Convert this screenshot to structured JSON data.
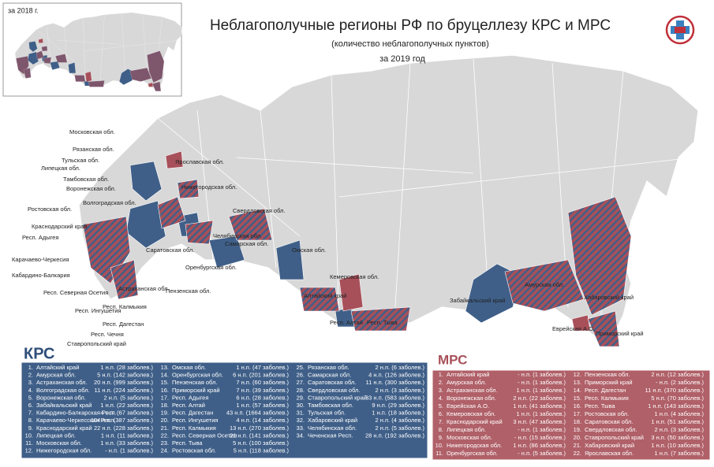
{
  "header": {
    "title": "Неблагополучные регионы РФ по бруцеллезу КРС и МРС",
    "subtitle": "(количество неблагополучных пунктов)",
    "period": "за 2019 год",
    "inset_label": "за 2018 г."
  },
  "map_labels": [
    "Московская обл.",
    "Рязанская обл.",
    "Тульская обл.",
    "Липецкая обл.",
    "Тамбовская обл.",
    "Воронежская обл.",
    "Волгоградская обл.",
    "Ростовская обл.",
    "Краснодарский край",
    "Респ. Адыгея",
    "Карачаево-Черкесия",
    "Кабардино-Балкария",
    "Респ. Северная Осетия",
    "Респ. Ингушетия",
    "Респ. Чечня",
    "Ставропольский край",
    "Респ. Дагестан",
    "Респ. Калмыкия",
    "Астраханская обл.",
    "Саратовская обл.",
    "Оренбургская обл.",
    "Пензенская обл.",
    "Нижегородская обл.",
    "Ярославская обл.",
    "Самарская обл.",
    "Свердловская обл.",
    "Челябинская обл.",
    "Омская обл.",
    "Кемеровская обл.",
    "Алтайский край",
    "Респ. Алтай",
    "Респ. Тыва",
    "Забайкальский край",
    "Амурская обл.",
    "Хабаровский край",
    "Еврейская А.О.",
    "Приморский край"
  ],
  "krs": {
    "heading": "КРС",
    "rows": [
      [
        "1.",
        "Алтайский край",
        "1 н.п. (28 заболев.)"
      ],
      [
        "2.",
        "Амурская обл.",
        "5 н.п. (142 заболев.)"
      ],
      [
        "3.",
        "Астраханская обл.",
        "20 н.п. (999 заболев.)"
      ],
      [
        "4.",
        "Волгоградская обл.",
        "11 н.п. (224 заболев.)"
      ],
      [
        "5.",
        "Воронежская обл.",
        "2 н.п. (5 заболев.)"
      ],
      [
        "6.",
        "Забайкальский край",
        "1 н.п. (22 заболев.)"
      ],
      [
        "7.",
        "Кабардино-Балкарская Респ.",
        "4 н.п. (67 заболев.)"
      ],
      [
        "8.",
        "Карачаево-Черкесская Респ.",
        "104 н.п. (387 заболев.)"
      ],
      [
        "9.",
        "Краснодарский край",
        "22 н.п. (228 заболев.)"
      ],
      [
        "10.",
        "Липецкая обл.",
        "1 н.п. (11 заболев.)"
      ],
      [
        "11.",
        "Московская обл.",
        "1 н.п. (33 заболев.)"
      ],
      [
        "12.",
        "Нижегородская обл.",
        "- н.п. (1 заболев.)"
      ],
      [
        "13.",
        "Омская обл.",
        "1 н.п. (47 заболев.)"
      ],
      [
        "14.",
        "Оренбургская обл.",
        "6 н.п. (201 заболев.)"
      ],
      [
        "15.",
        "Пензенская обл.",
        "7 н.п. (60 заболев.)"
      ],
      [
        "16.",
        "Приморский край",
        "7 н.п. (39 заболев.)"
      ],
      [
        "17.",
        "Респ. Адыгея",
        "6 н.п. (28 заболев.)"
      ],
      [
        "18.",
        "Респ. Алтай",
        "1 н.п. (57 заболев.)"
      ],
      [
        "19.",
        "Респ. Дагестан",
        "43 н.п. (1664 заболев.)"
      ],
      [
        "20.",
        "Респ. Ингушетия",
        "4 н.п. (14 заболев.)"
      ],
      [
        "21.",
        "Респ. Калмыкия",
        "13 н.п. (270 заболев.)"
      ],
      [
        "22.",
        "Респ. Северная Осетия",
        "21 н.п. (141 заболев.)"
      ],
      [
        "23.",
        "Респ. Тыва",
        "5 н.п. (100 заболев.)"
      ],
      [
        "24.",
        "Ростовская обл.",
        "5 н.п. (118 заболев.)"
      ],
      [
        "25.",
        "Рязанская обл.",
        "2 н.п. (6 заболев.)"
      ],
      [
        "26.",
        "Самарская обл.",
        "4 н.п. (126 заболев.)"
      ],
      [
        "27.",
        "Саратовская обл.",
        "11 н.п. (300 заболев.)"
      ],
      [
        "28.",
        "Свердловская обл.",
        "2 н.п. (3 заболев.)"
      ],
      [
        "29.",
        "Ставропольский край",
        "33 н.п. (583 заболев.)"
      ],
      [
        "30.",
        "Тамбовская обл.",
        "9 н.п. (29 заболев.)"
      ],
      [
        "31.",
        "Тульская обл.",
        "1 н.п. (18 заболев.)"
      ],
      [
        "32.",
        "Хабаровский край",
        "2 н.п. (4 заболев.)"
      ],
      [
        "33.",
        "Челябинская обл.",
        "2 н.п. (5 заболев.)"
      ],
      [
        "34.",
        "Чеченская Респ.",
        "28 н.п. (192 заболев.)"
      ]
    ]
  },
  "mrs": {
    "heading": "МРС",
    "rows": [
      [
        "1.",
        "Алтайский край",
        "- н.п. (1 заболев.)"
      ],
      [
        "2.",
        "Амурская обл.",
        "- н.п. (1 заболев.)"
      ],
      [
        "3.",
        "Астраханская обл.",
        "1 н.п. (1 заболев.)"
      ],
      [
        "4.",
        "Воронежская обл.",
        "2 н.п. (22 заболев.)"
      ],
      [
        "5.",
        "Еврейская А.О.",
        "1 н.п. (41 заболев.)"
      ],
      [
        "6.",
        "Кемеровская обл.",
        "1 н.п. (1 заболев.)"
      ],
      [
        "7.",
        "Краснодарский край",
        "3 н.п. (47 заболев.)"
      ],
      [
        "8.",
        "Липецкая обл.",
        "- н.п. (1 заболев.)"
      ],
      [
        "9.",
        "Московская обл.",
        "- н.п. (15 заболев.)"
      ],
      [
        "10.",
        "Нижегородская обл.",
        "1 н.п. (86 заболев.)"
      ],
      [
        "11.",
        "Оренбургская обл.",
        "- н.п. (5 заболев.)"
      ],
      [
        "12.",
        "Пензенская обл.",
        "2 н.п. (12 заболев.)"
      ],
      [
        "13.",
        "Приморский край",
        "- н.п. (2 заболев.)"
      ],
      [
        "14.",
        "Респ. Дагестан",
        "11 н.п. (370 заболев.)"
      ],
      [
        "15.",
        "Респ. Калмыкия",
        "5 н.п. (70 заболев.)"
      ],
      [
        "16.",
        "Респ. Тыва",
        "1 н.п. (143 заболев.)"
      ],
      [
        "17.",
        "Ростовская обл.",
        "1 н.п. (4 заболев.)"
      ],
      [
        "18.",
        "Саратовская обл.",
        "1 н.п. (51 заболев.)"
      ],
      [
        "19.",
        "Свердловская обл.",
        "2 н.п. (3 заболев.)"
      ],
      [
        "20.",
        "Ставропольский край",
        "3 н.п. (50 заболев.)"
      ],
      [
        "21.",
        "Хабаровский край",
        "1 н.п. (10 заболев.)"
      ],
      [
        "22.",
        "Ярославская обл.",
        "1 н.п. (7 заболев.)"
      ]
    ]
  }
}
